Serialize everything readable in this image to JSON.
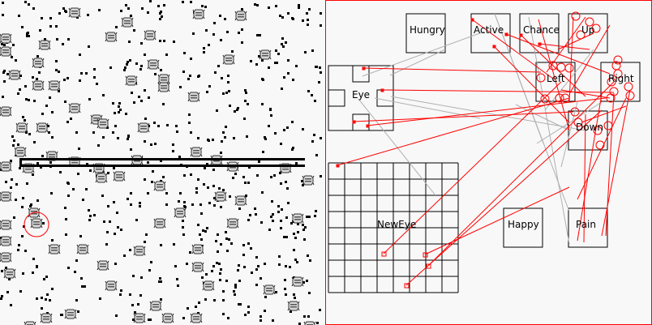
{
  "world": {
    "wall_color": "#000000",
    "food_color": "#000000",
    "selected_highlight_color": "#ff0000"
  },
  "brain": {
    "border_color": "#ff0000",
    "nodes": {
      "hungry": "Hungry",
      "active": "Active",
      "chance": "Chance",
      "up": "Up",
      "left": "Left",
      "right": "Right",
      "down": "Down",
      "eye": "Eye",
      "new_eye": "NewEye",
      "happy": "Happy",
      "pain": "Pain"
    },
    "excitatory_color": "#ff0000",
    "inhibitory_color": "#b0b0b0"
  }
}
